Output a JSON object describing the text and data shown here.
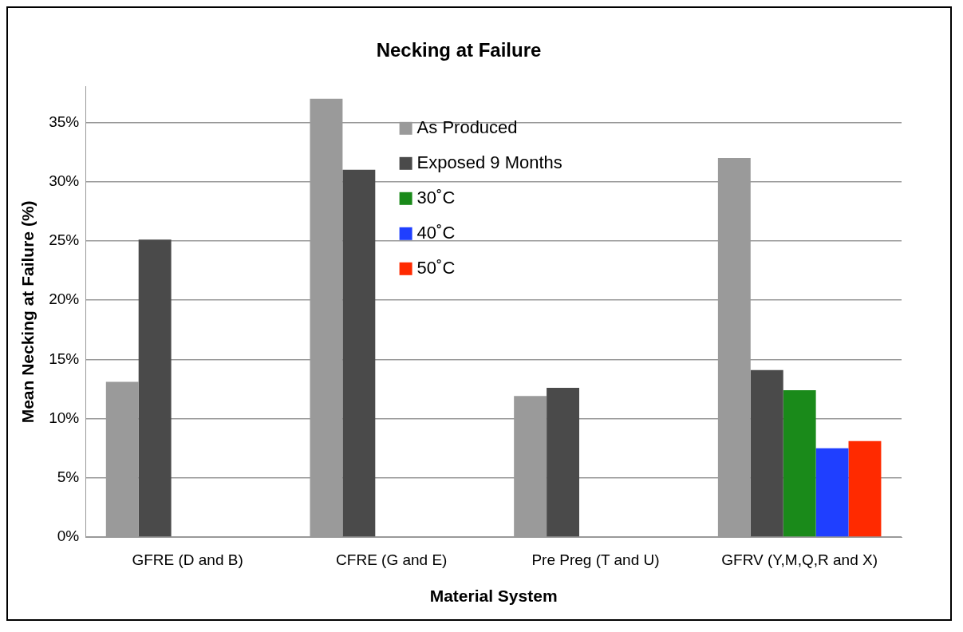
{
  "chart_data": {
    "type": "bar",
    "title": "Necking at Failure",
    "xlabel": "Material System",
    "ylabel": "Mean Necking at Failure (%)",
    "categories": [
      "GFRE (D and B)",
      "CFRE (G and E)",
      "Pre Preg (T and U)",
      "GFRV (Y,M,Q,R and X)"
    ],
    "series": [
      {
        "name": "As Produced",
        "color": "#9a9a9a",
        "values": [
          13.1,
          37,
          11.9,
          32
        ]
      },
      {
        "name": "Exposed 9 Months",
        "color": "#4a4a4a",
        "values": [
          25.1,
          31,
          12.6,
          14.1
        ]
      },
      {
        "name": "30˚C",
        "color": "#1a8a1a",
        "values": [
          null,
          null,
          null,
          12.4
        ]
      },
      {
        "name": "40˚C",
        "color": "#1f3fff",
        "values": [
          null,
          null,
          null,
          7.5
        ]
      },
      {
        "name": "50˚C",
        "color": "#ff2a00",
        "values": [
          null,
          null,
          null,
          8.1
        ]
      }
    ],
    "ylim": [
      0,
      38
    ],
    "yticks": [
      {
        "value": 0,
        "label": "0%"
      },
      {
        "value": 5,
        "label": "5%"
      },
      {
        "value": 10,
        "label": "10%"
      },
      {
        "value": 15,
        "label": "15%"
      },
      {
        "value": 20,
        "label": "20%"
      },
      {
        "value": 25,
        "label": "25%"
      },
      {
        "value": 30,
        "label": "30%"
      },
      {
        "value": 35,
        "label": "35%"
      }
    ],
    "grid": "y",
    "legend": "top"
  }
}
